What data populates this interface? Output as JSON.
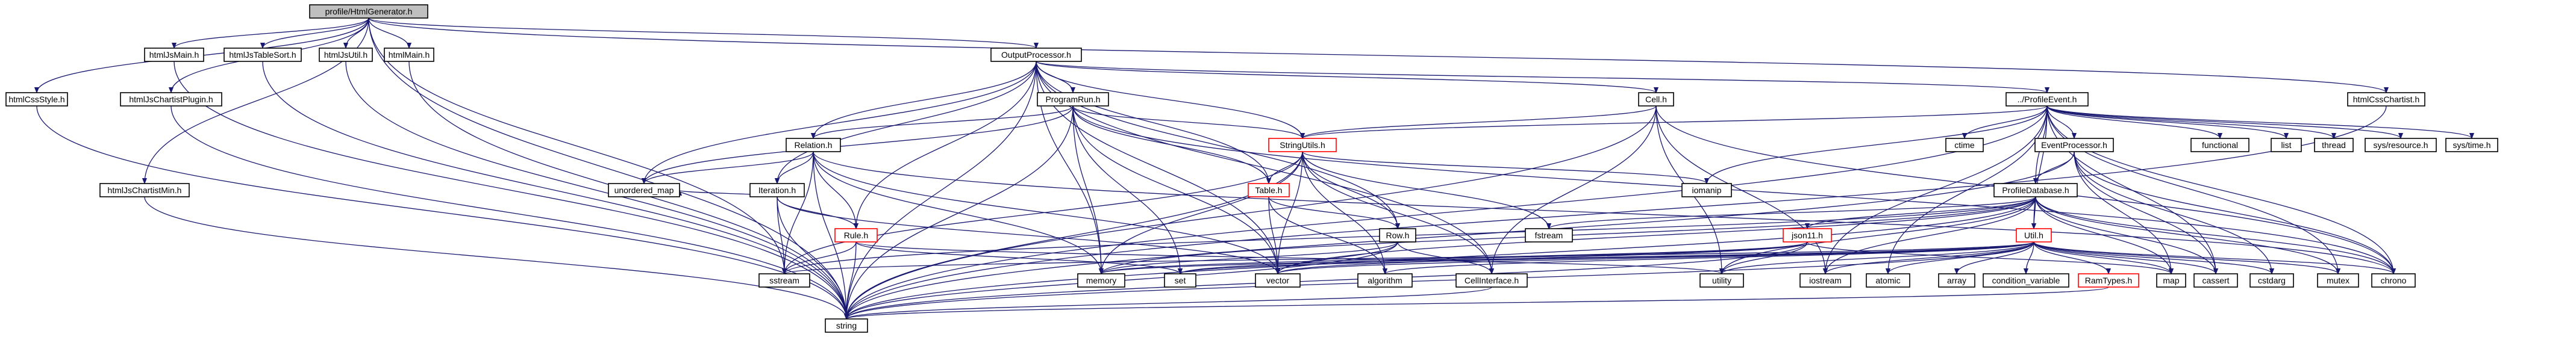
{
  "diagram": {
    "nodes": [
      {
        "id": "root",
        "label": "profile/HtmlGenerator.h"
      },
      {
        "id": "htmlCssStyle",
        "label": "htmlCssStyle.h"
      },
      {
        "id": "htmlJsChartistPlugin",
        "label": "htmlJsChartistPlugin.h"
      },
      {
        "id": "htmlJsChartistMin",
        "label": "htmlJsChartistMin.h"
      },
      {
        "id": "htmlJsMain",
        "label": "htmlJsMain.h"
      },
      {
        "id": "htmlJsTableSort",
        "label": "htmlJsTableSort.h"
      },
      {
        "id": "htmlJsUtil",
        "label": "htmlJsUtil.h"
      },
      {
        "id": "htmlMain",
        "label": "htmlMain.h"
      },
      {
        "id": "outputProcessor",
        "label": "OutputProcessor.h"
      },
      {
        "id": "htmlCssChartist",
        "label": "htmlCssChartist.h"
      },
      {
        "id": "programRun",
        "label": "ProgramRun.h"
      },
      {
        "id": "cell",
        "label": "Cell.h"
      },
      {
        "id": "profileEvent",
        "label": "../ProfileEvent.h"
      },
      {
        "id": "relation",
        "label": "Relation.h"
      },
      {
        "id": "stringUtils",
        "label": "StringUtils.h"
      },
      {
        "id": "eventProcessor",
        "label": "EventProcessor.h"
      },
      {
        "id": "iteration",
        "label": "Iteration.h"
      },
      {
        "id": "table",
        "label": "Table.h"
      },
      {
        "id": "profileDatabase",
        "label": "ProfileDatabase.h"
      },
      {
        "id": "rule",
        "label": "Rule.h"
      },
      {
        "id": "row",
        "label": "Row.h"
      },
      {
        "id": "json11",
        "label": "json11.h"
      },
      {
        "id": "util",
        "label": "Util.h"
      },
      {
        "id": "cellInterface",
        "label": "CellInterface.h"
      },
      {
        "id": "ramTypes",
        "label": "RamTypes.h"
      },
      {
        "id": "unordered_map",
        "label": "unordered_map"
      },
      {
        "id": "sstream",
        "label": "sstream"
      },
      {
        "id": "memory",
        "label": "memory"
      },
      {
        "id": "set",
        "label": "set"
      },
      {
        "id": "vector",
        "label": "vector"
      },
      {
        "id": "algorithm",
        "label": "algorithm"
      },
      {
        "id": "utility",
        "label": "utility"
      },
      {
        "id": "iostream",
        "label": "iostream"
      },
      {
        "id": "atomic",
        "label": "atomic"
      },
      {
        "id": "array",
        "label": "array"
      },
      {
        "id": "condition_variable",
        "label": "condition_variable"
      },
      {
        "id": "map",
        "label": "map"
      },
      {
        "id": "cassert",
        "label": "cassert"
      },
      {
        "id": "cstdarg",
        "label": "cstdarg"
      },
      {
        "id": "mutex",
        "label": "mutex"
      },
      {
        "id": "chrono",
        "label": "chrono"
      },
      {
        "id": "fstream",
        "label": "fstream"
      },
      {
        "id": "iomanip",
        "label": "iomanip"
      },
      {
        "id": "ctime",
        "label": "ctime"
      },
      {
        "id": "functional",
        "label": "functional"
      },
      {
        "id": "list",
        "label": "list"
      },
      {
        "id": "thread",
        "label": "thread"
      },
      {
        "id": "sysResource",
        "label": "sys/resource.h"
      },
      {
        "id": "sysTime",
        "label": "sys/time.h"
      },
      {
        "id": "string",
        "label": "string"
      }
    ],
    "edges": [
      [
        "root",
        "htmlCssStyle"
      ],
      [
        "root",
        "htmlJsChartistPlugin"
      ],
      [
        "root",
        "htmlJsChartistMin"
      ],
      [
        "root",
        "htmlJsMain"
      ],
      [
        "root",
        "htmlJsTableSort"
      ],
      [
        "root",
        "htmlJsUtil"
      ],
      [
        "root",
        "htmlMain"
      ],
      [
        "root",
        "outputProcessor"
      ],
      [
        "root",
        "htmlCssChartist"
      ],
      [
        "root",
        "sstream"
      ],
      [
        "root",
        "string"
      ],
      [
        "htmlCssStyle",
        "string"
      ],
      [
        "htmlJsChartistPlugin",
        "string"
      ],
      [
        "htmlJsChartistMin",
        "string"
      ],
      [
        "htmlJsMain",
        "string"
      ],
      [
        "htmlJsTableSort",
        "string"
      ],
      [
        "htmlJsUtil",
        "string"
      ],
      [
        "htmlMain",
        "string"
      ],
      [
        "htmlCssChartist",
        "string"
      ],
      [
        "outputProcessor",
        "programRun"
      ],
      [
        "outputProcessor",
        "cell"
      ],
      [
        "outputProcessor",
        "profileEvent"
      ],
      [
        "outputProcessor",
        "relation"
      ],
      [
        "outputProcessor",
        "stringUtils"
      ],
      [
        "outputProcessor",
        "iteration"
      ],
      [
        "outputProcessor",
        "table"
      ],
      [
        "outputProcessor",
        "rule"
      ],
      [
        "outputProcessor",
        "row"
      ],
      [
        "outputProcessor",
        "cellInterface"
      ],
      [
        "outputProcessor",
        "unordered_map"
      ],
      [
        "outputProcessor",
        "memory"
      ],
      [
        "outputProcessor",
        "vector"
      ],
      [
        "outputProcessor",
        "string"
      ],
      [
        "programRun",
        "relation"
      ],
      [
        "programRun",
        "stringUtils"
      ],
      [
        "programRun",
        "table"
      ],
      [
        "programRun",
        "unordered_map"
      ],
      [
        "programRun",
        "memory"
      ],
      [
        "programRun",
        "set"
      ],
      [
        "programRun",
        "vector"
      ],
      [
        "programRun",
        "string"
      ],
      [
        "programRun",
        "chrono"
      ],
      [
        "cell",
        "stringUtils"
      ],
      [
        "cell",
        "cellInterface"
      ],
      [
        "cell",
        "utility"
      ],
      [
        "cell",
        "iostream"
      ],
      [
        "cell",
        "string"
      ],
      [
        "cell",
        "chrono"
      ],
      [
        "profileEvent",
        "stringUtils"
      ],
      [
        "profileEvent",
        "eventProcessor"
      ],
      [
        "profileEvent",
        "profileDatabase"
      ],
      [
        "profileEvent",
        "util"
      ],
      [
        "profileEvent",
        "ctime"
      ],
      [
        "profileEvent",
        "functional"
      ],
      [
        "profileEvent",
        "list"
      ],
      [
        "profileEvent",
        "thread"
      ],
      [
        "profileEvent",
        "sysResource"
      ],
      [
        "profileEvent",
        "sysTime"
      ],
      [
        "profileEvent",
        "iostream"
      ],
      [
        "profileEvent",
        "atomic"
      ],
      [
        "profileEvent",
        "mutex"
      ],
      [
        "profileEvent",
        "chrono"
      ],
      [
        "profileEvent",
        "string"
      ],
      [
        "profileEvent",
        "cassert"
      ],
      [
        "profileEvent",
        "iomanip"
      ],
      [
        "relation",
        "iteration"
      ],
      [
        "relation",
        "rule"
      ],
      [
        "relation",
        "unordered_map"
      ],
      [
        "relation",
        "sstream"
      ],
      [
        "relation",
        "memory"
      ],
      [
        "relation",
        "vector"
      ],
      [
        "relation",
        "string"
      ],
      [
        "relation",
        "chrono"
      ],
      [
        "stringUtils",
        "table"
      ],
      [
        "stringUtils",
        "row"
      ],
      [
        "stringUtils",
        "cellInterface"
      ],
      [
        "stringUtils",
        "sstream"
      ],
      [
        "stringUtils",
        "memory"
      ],
      [
        "stringUtils",
        "vector"
      ],
      [
        "stringUtils",
        "algorithm"
      ],
      [
        "stringUtils",
        "iomanip"
      ],
      [
        "stringUtils",
        "fstream"
      ],
      [
        "stringUtils",
        "string"
      ],
      [
        "eventProcessor",
        "profileDatabase"
      ],
      [
        "eventProcessor",
        "map"
      ],
      [
        "eventProcessor",
        "cassert"
      ],
      [
        "eventProcessor",
        "cstdarg"
      ],
      [
        "eventProcessor",
        "chrono"
      ],
      [
        "eventProcessor",
        "string"
      ],
      [
        "iteration",
        "rule"
      ],
      [
        "iteration",
        "unordered_map"
      ],
      [
        "iteration",
        "sstream"
      ],
      [
        "iteration",
        "vector"
      ],
      [
        "iteration",
        "string"
      ],
      [
        "table",
        "row"
      ],
      [
        "table",
        "vector"
      ],
      [
        "table",
        "algorithm"
      ],
      [
        "profileDatabase",
        "json11"
      ],
      [
        "profileDatabase",
        "util"
      ],
      [
        "profileDatabase",
        "memory"
      ],
      [
        "profileDatabase",
        "utility"
      ],
      [
        "profileDatabase",
        "map"
      ],
      [
        "profileDatabase",
        "mutex"
      ],
      [
        "profileDatabase",
        "cassert"
      ],
      [
        "profileDatabase",
        "chrono"
      ],
      [
        "profileDatabase",
        "fstream"
      ],
      [
        "profileDatabase",
        "iostream"
      ],
      [
        "profileDatabase",
        "string"
      ],
      [
        "profileDatabase",
        "vector"
      ],
      [
        "profileDatabase",
        "sstream"
      ],
      [
        "rule",
        "sstream"
      ],
      [
        "rule",
        "set"
      ],
      [
        "rule",
        "string"
      ],
      [
        "rule",
        "utility"
      ],
      [
        "row",
        "cellInterface"
      ],
      [
        "row",
        "memory"
      ],
      [
        "row",
        "vector"
      ],
      [
        "row",
        "string"
      ],
      [
        "json11",
        "memory"
      ],
      [
        "json11",
        "set"
      ],
      [
        "json11",
        "vector"
      ],
      [
        "json11",
        "utility"
      ],
      [
        "json11",
        "map"
      ],
      [
        "json11",
        "string"
      ],
      [
        "util",
        "ramTypes"
      ],
      [
        "util",
        "memory"
      ],
      [
        "util",
        "set"
      ],
      [
        "util",
        "vector"
      ],
      [
        "util",
        "algorithm"
      ],
      [
        "util",
        "utility"
      ],
      [
        "util",
        "iostream"
      ],
      [
        "util",
        "atomic"
      ],
      [
        "util",
        "array"
      ],
      [
        "util",
        "condition_variable"
      ],
      [
        "util",
        "map"
      ],
      [
        "util",
        "cassert"
      ],
      [
        "util",
        "cstdarg"
      ],
      [
        "util",
        "mutex"
      ],
      [
        "util",
        "chrono"
      ],
      [
        "util",
        "string"
      ],
      [
        "util",
        "sstream"
      ],
      [
        "cellInterface",
        "string"
      ],
      [
        "ramTypes",
        "string"
      ]
    ]
  }
}
